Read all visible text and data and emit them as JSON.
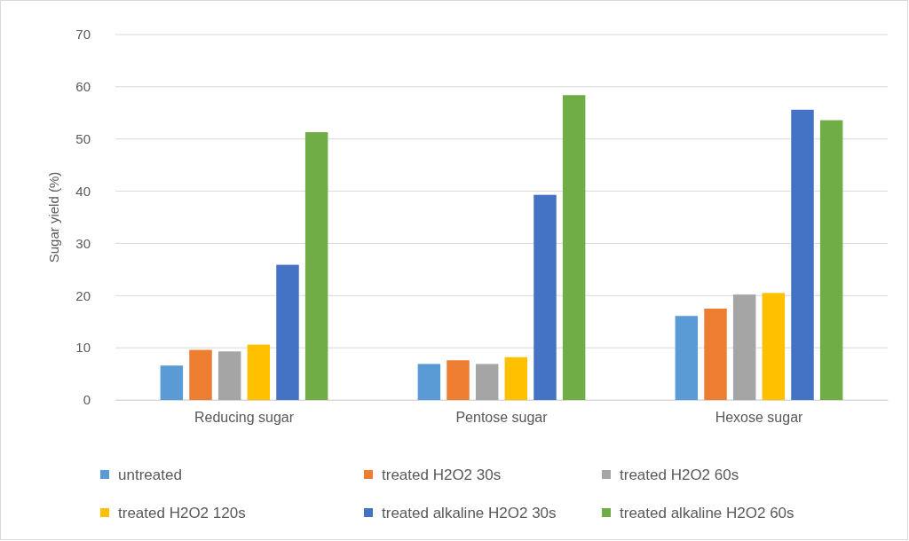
{
  "chart_data": {
    "type": "bar",
    "ylabel": "Sugar yield (%)",
    "categories": [
      "Reducing sugar",
      "Pentose sugar",
      "Hexose sugar"
    ],
    "series": [
      {
        "name": "untreated",
        "color": "#5b9bd5",
        "values": [
          6.6,
          6.9,
          16.1
        ]
      },
      {
        "name": "treated H2O2 30s",
        "color": "#ed7d31",
        "values": [
          9.6,
          7.6,
          17.5
        ]
      },
      {
        "name": "treated H2O2 60s",
        "color": "#a5a5a5",
        "values": [
          9.3,
          6.9,
          20.2
        ]
      },
      {
        "name": "treated H2O2 120s",
        "color": "#ffc000",
        "values": [
          10.6,
          8.2,
          20.5
        ]
      },
      {
        "name": "treated alkaline H2O2 30s",
        "color": "#4472c4",
        "values": [
          25.9,
          39.3,
          55.6
        ]
      },
      {
        "name": "treated alkaline H2O2 60s",
        "color": "#70ad47",
        "values": [
          51.3,
          58.4,
          53.6
        ]
      }
    ],
    "ylim": [
      0,
      70
    ],
    "yticks": [
      0,
      10,
      20,
      30,
      40,
      50,
      60,
      70
    ],
    "grid": "y",
    "legend": "bottom"
  }
}
